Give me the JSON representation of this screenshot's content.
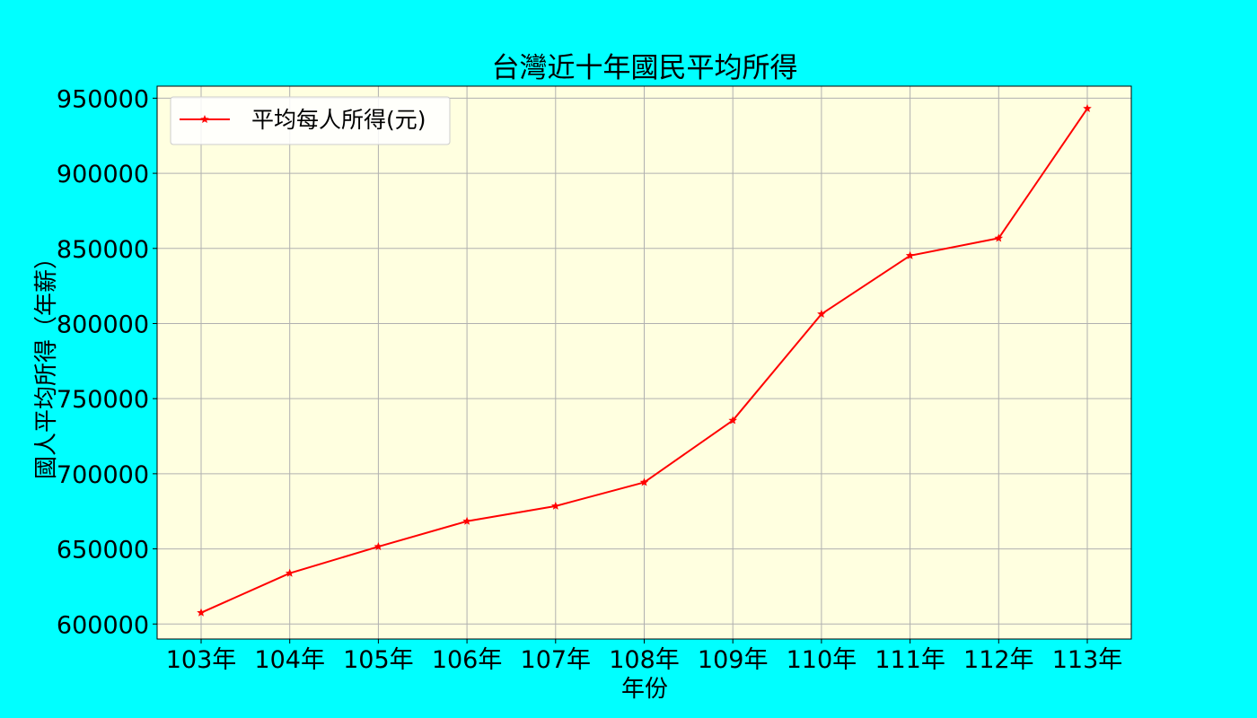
{
  "colors": {
    "figure_background": "#00ffff",
    "plot_background": "#ffffe0",
    "line": "#ff0000",
    "grid": "#b0b0b0"
  },
  "chart_data": {
    "type": "line",
    "title": "台灣近十年國民平均所得",
    "xlabel": "年份",
    "ylabel": "國人平均所得（年薪）",
    "categories": [
      "103年",
      "104年",
      "105年",
      "106年",
      "107年",
      "108年",
      "109年",
      "110年",
      "111年",
      "112年",
      "113年"
    ],
    "series": [
      {
        "name": "平均每人所得(元)",
        "marker": "star",
        "values": [
          607500,
          633800,
          651500,
          668400,
          678500,
          694300,
          735500,
          806300,
          845200,
          856800,
          943100
        ]
      }
    ],
    "ylim": [
      590000,
      958000
    ],
    "yticks": [
      600000,
      650000,
      700000,
      750000,
      800000,
      850000,
      900000,
      950000
    ],
    "grid": true,
    "legend_position": "top-left"
  }
}
